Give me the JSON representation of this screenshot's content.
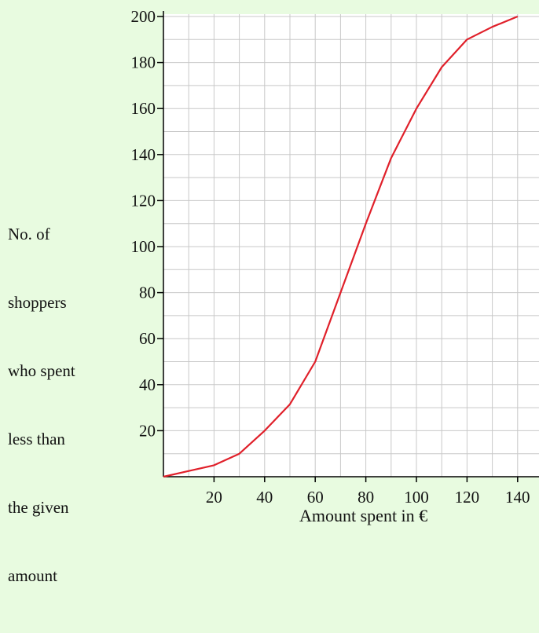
{
  "chart_data": {
    "type": "line",
    "title": "",
    "xlabel": "Amount spent in €",
    "ylabel_lines": [
      "No. of",
      "shoppers",
      "who spent",
      "less than",
      "the given",
      "amount"
    ],
    "xlim": [
      0,
      145
    ],
    "ylim": [
      0,
      200
    ],
    "x_ticks": [
      20,
      40,
      60,
      80,
      100,
      120,
      140
    ],
    "y_ticks": [
      20,
      40,
      60,
      80,
      100,
      120,
      140,
      160,
      180,
      200
    ],
    "x_tick_labels": [
      "20",
      "40",
      "60",
      "80",
      "100",
      "120",
      "140"
    ],
    "y_tick_labels": [
      "20",
      "40",
      "60",
      "80",
      "100",
      "120",
      "140",
      "160",
      "180",
      "200"
    ],
    "grid": true,
    "grid_minor_step_x": 10,
    "grid_minor_step_y": 10,
    "series": [
      {
        "color": "#E0202A",
        "x": [
          0,
          10,
          20,
          30,
          40,
          50,
          60,
          70,
          80,
          90,
          100,
          110,
          120,
          130,
          140
        ],
        "y": [
          0,
          2.5,
          5,
          10,
          20,
          31.5,
          50,
          80,
          110,
          138.5,
          160,
          178,
          190,
          195.5,
          200
        ]
      }
    ],
    "colors": {
      "background": "#E8FBE0",
      "plot_background": "#FFFFFF",
      "grid": "#C8C8C8",
      "axis": "#000000"
    }
  }
}
